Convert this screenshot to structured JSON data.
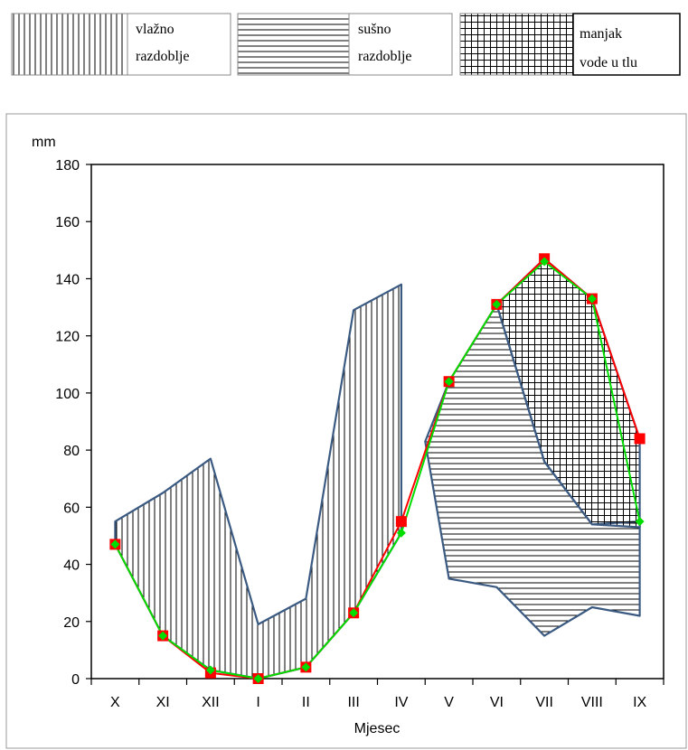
{
  "legend": {
    "items": [
      {
        "key": "wet",
        "line1": "vlažno",
        "line2": "razdoblje",
        "pattern": "vertical-lines"
      },
      {
        "key": "dry",
        "line1": "sušno",
        "line2": "razdoblje",
        "pattern": "horizontal-lines"
      },
      {
        "key": "deficit",
        "line1": "manjak",
        "line2": "vode u tlu",
        "pattern": "grid"
      }
    ]
  },
  "colors": {
    "outline": "#3b5a82",
    "red_series": "#ff0000",
    "green_series": "#00dd00"
  },
  "chart_data": {
    "type": "line",
    "ylabel": "mm",
    "xlabel": "Mjesec",
    "ylim": [
      0,
      180
    ],
    "yticks": [
      0,
      20,
      40,
      60,
      80,
      100,
      120,
      140,
      160,
      180
    ],
    "categories": [
      "X",
      "XI",
      "XII",
      "I",
      "II",
      "III",
      "IV",
      "V",
      "VI",
      "VII",
      "VIII",
      "IX"
    ],
    "series": [
      {
        "marker": "square",
        "color": "#ff0000",
        "values": [
          47,
          15,
          2,
          0,
          4,
          23,
          55,
          104,
          131,
          147,
          133,
          84
        ]
      },
      {
        "marker": "diamond",
        "color": "#00dd00",
        "values": [
          47,
          15,
          3,
          0,
          4,
          23,
          51,
          104,
          131,
          146,
          133,
          55
        ]
      },
      {
        "marker": "none",
        "color": "#3b5a82",
        "values": [
          55,
          65,
          77,
          19,
          28,
          129,
          138,
          35,
          32,
          15,
          25,
          22
        ]
      }
    ],
    "regions": [
      {
        "pattern": "vertical-lines"
      },
      {
        "pattern": "horizontal-lines"
      },
      {
        "pattern": "grid"
      }
    ],
    "grid": false,
    "legend_position": "top"
  }
}
